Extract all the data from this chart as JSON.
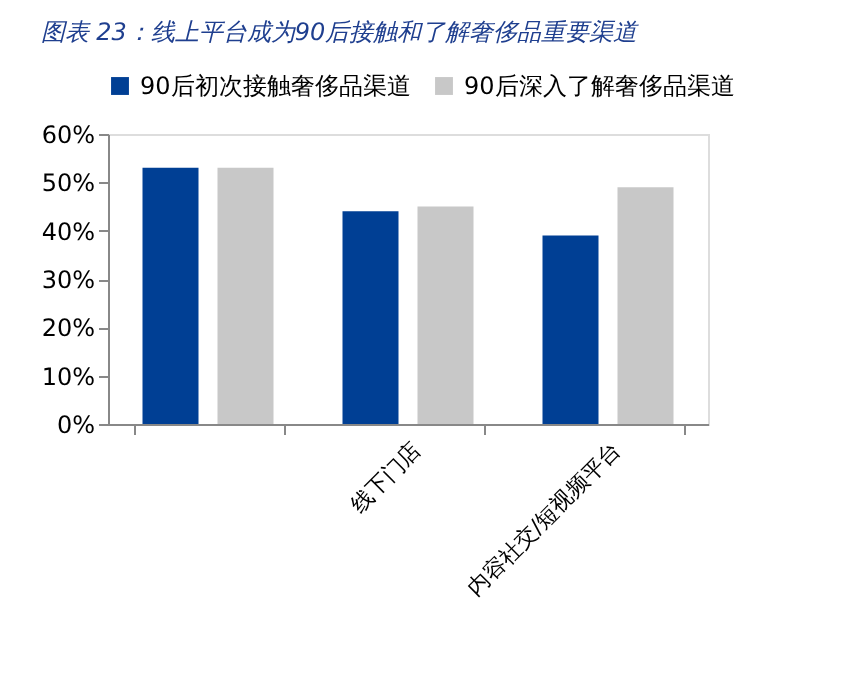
{
  "chart_data": {
    "type": "bar",
    "title": "图表 23：线上平台成为90后接触和了解奢侈品重要渠道",
    "categories": [
      null,
      "线下门店",
      "内容社交/短视频平台"
    ],
    "series": [
      {
        "name": "90后初次接触奢侈品渠道",
        "color": "#003f94",
        "values": [
          53,
          44,
          39
        ]
      },
      {
        "name": "90后深入了解奢侈品渠道",
        "color": "#c8c8c8",
        "values": [
          53,
          45,
          49
        ]
      }
    ],
    "ylim": [
      0,
      60
    ],
    "yticks": [
      {
        "value": 0,
        "label": "0%"
      },
      {
        "value": 10,
        "label": "10%"
      },
      {
        "value": 20,
        "label": "20%"
      },
      {
        "value": 30,
        "label": "30%"
      },
      {
        "value": 40,
        "label": "40%"
      },
      {
        "value": 50,
        "label": "50%"
      },
      {
        "value": 60,
        "label": "60%"
      }
    ],
    "grid": false,
    "legend": "top"
  }
}
